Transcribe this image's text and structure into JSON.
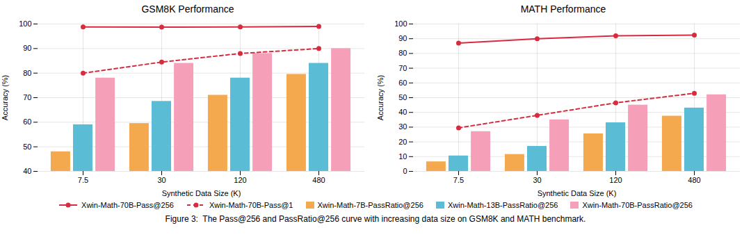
{
  "chart_data": [
    {
      "type": "bar",
      "title": "GSM8K Performance",
      "categories": [
        "7.5",
        "30",
        "120",
        "480"
      ],
      "xlabel": "Synthetic Data Size (K)",
      "ylabel": "Accuracy (%)",
      "ylim": [
        40,
        100
      ],
      "yticks": [
        40,
        50,
        60,
        70,
        80,
        90,
        100
      ],
      "grid": true,
      "series": [
        {
          "name": "Xwin-Math-70B-Pass@256",
          "type": "line",
          "color": "#d72b3f",
          "marker": "circle",
          "line_style": "solid",
          "values": [
            98.8,
            98.7,
            98.8,
            99.0
          ]
        },
        {
          "name": "Xwin-Math-70B-Pass@1",
          "type": "line",
          "color": "#d72b3f",
          "marker": "circle",
          "line_style": "dashed",
          "values": [
            80.0,
            84.5,
            88.0,
            90.0
          ]
        },
        {
          "name": "Xwin-Math-7B-PassRatio@256",
          "type": "bar",
          "color": "#f5a94e",
          "values": [
            48.0,
            59.5,
            71.0,
            79.5
          ]
        },
        {
          "name": "Xwin-Math-13B-PassRatio@256",
          "type": "bar",
          "color": "#5bbcd6",
          "values": [
            59.0,
            68.5,
            78.0,
            84.0
          ]
        },
        {
          "name": "Xwin-Math-70B-PassRatio@256",
          "type": "bar",
          "color": "#f5a0b8",
          "values": [
            78.0,
            84.0,
            88.0,
            90.0
          ]
        }
      ]
    },
    {
      "type": "bar",
      "title": "MATH Performance",
      "categories": [
        "7.5",
        "30",
        "120",
        "480"
      ],
      "xlabel": "Synthetic Data Size (K)",
      "ylabel": "Accuracy (%)",
      "ylim": [
        0,
        100
      ],
      "yticks": [
        0,
        10,
        20,
        30,
        40,
        50,
        60,
        70,
        80,
        90,
        100
      ],
      "grid": true,
      "legend": "bottom",
      "series": [
        {
          "name": "Xwin-Math-70B-Pass@256",
          "type": "line",
          "color": "#d72b3f",
          "marker": "circle",
          "line_style": "solid",
          "values": [
            87.0,
            90.0,
            92.0,
            92.5
          ]
        },
        {
          "name": "Xwin-Math-70B-Pass@1",
          "type": "line",
          "color": "#d72b3f",
          "marker": "circle",
          "line_style": "dashed",
          "values": [
            29.5,
            38.0,
            46.5,
            53.0
          ]
        },
        {
          "name": "Xwin-Math-7B-PassRatio@256",
          "type": "bar",
          "color": "#f5a94e",
          "values": [
            6.5,
            11.5,
            25.5,
            37.5
          ]
        },
        {
          "name": "Xwin-Math-13B-PassRatio@256",
          "type": "bar",
          "color": "#5bbcd6",
          "values": [
            10.5,
            17.0,
            33.0,
            43.0
          ]
        },
        {
          "name": "Xwin-Math-70B-PassRatio@256",
          "type": "bar",
          "color": "#f5a0b8",
          "values": [
            27.0,
            35.0,
            45.0,
            52.0
          ]
        }
      ]
    }
  ],
  "caption": "Figure 3:  The Pass@256 and PassRatio@256 curve with increasing data size on GSM8K and MATH benchmark."
}
